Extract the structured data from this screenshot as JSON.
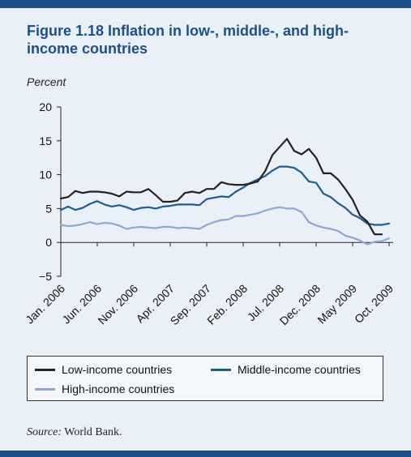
{
  "figure": {
    "title": "Figure 1.18  Inflation in low-, middle-, and high-income countries",
    "unit_label": "Percent",
    "source_prefix": "Source:",
    "source_text": "World Bank."
  },
  "colors": {
    "frame_bg": "#eaf0f7",
    "accent": "#1f4f8b",
    "title": "#1c4f8c"
  },
  "legend": [
    {
      "label": "Low-income countries",
      "color": "#222222"
    },
    {
      "label": "Middle-income countries",
      "color": "#1f5b94"
    },
    {
      "label": "High-income countries",
      "color": "#8ea6d4"
    }
  ],
  "chart_data": {
    "type": "line",
    "xlabel": "",
    "ylabel": "Percent",
    "ylim": [
      -5,
      20
    ],
    "yticks": [
      -5,
      0,
      5,
      10,
      15,
      20
    ],
    "x_tick_labels": [
      "Jan. 2006",
      "Jun. 2006",
      "Nov. 2006",
      "Apr. 2007",
      "Sep. 2007",
      "Feb. 2008",
      "Jul. 2008",
      "Dec. 2008",
      "May 2009",
      "Oct. 2009"
    ],
    "x_tick_month_index": [
      0,
      5,
      10,
      15,
      20,
      25,
      30,
      35,
      40,
      45
    ],
    "x_months": [
      "Jan. 2006",
      "Feb. 2006",
      "Mar. 2006",
      "Apr. 2006",
      "May 2006",
      "Jun. 2006",
      "Jul. 2006",
      "Aug. 2006",
      "Sep. 2006",
      "Oct. 2006",
      "Nov. 2006",
      "Dec. 2006",
      "Jan. 2007",
      "Feb. 2007",
      "Mar. 2007",
      "Apr. 2007",
      "May 2007",
      "Jun. 2007",
      "Jul. 2007",
      "Aug. 2007",
      "Sep. 2007",
      "Oct. 2007",
      "Nov. 2007",
      "Dec. 2007",
      "Jan. 2008",
      "Feb. 2008",
      "Mar. 2008",
      "Apr. 2008",
      "May 2008",
      "Jun. 2008",
      "Jul. 2008",
      "Aug. 2008",
      "Sep. 2008",
      "Oct. 2008",
      "Nov. 2008",
      "Dec. 2008",
      "Jan. 2009",
      "Feb. 2009",
      "Mar. 2009",
      "Apr. 2009",
      "May 2009",
      "Jun. 2009",
      "Jul. 2009",
      "Aug. 2009",
      "Sep. 2009",
      "Oct. 2009"
    ],
    "series": [
      {
        "name": "Low-income countries",
        "color": "#222222",
        "values": [
          6.5,
          6.7,
          7.6,
          7.3,
          7.5,
          7.5,
          7.4,
          7.2,
          6.8,
          7.5,
          7.4,
          7.4,
          7.9,
          7.0,
          6.0,
          6.0,
          6.2,
          7.3,
          7.5,
          7.3,
          7.9,
          7.9,
          8.9,
          8.6,
          8.5,
          8.5,
          8.7,
          9.0,
          10.5,
          12.9,
          14.1,
          15.3,
          13.5,
          13.0,
          13.8,
          12.5,
          10.2,
          10.2,
          9.3,
          7.9,
          6.3,
          4.0,
          3.1,
          1.2,
          1.2,
          null
        ]
      },
      {
        "name": "Middle-income countries",
        "color": "#1f5b94",
        "values": [
          4.8,
          5.3,
          4.8,
          5.1,
          5.7,
          6.1,
          5.6,
          5.3,
          5.5,
          5.2,
          4.8,
          5.1,
          5.2,
          5.0,
          5.3,
          5.4,
          5.6,
          5.6,
          5.6,
          5.5,
          6.4,
          6.6,
          6.8,
          6.7,
          7.5,
          8.1,
          8.8,
          9.3,
          9.8,
          10.6,
          11.2,
          11.2,
          11.0,
          10.3,
          9.0,
          8.8,
          7.2,
          6.7,
          5.8,
          5.1,
          4.1,
          3.6,
          2.8,
          2.6,
          2.6,
          2.8
        ]
      },
      {
        "name": "High-income countries",
        "color": "#8ea6d4",
        "values": [
          2.6,
          2.4,
          2.5,
          2.7,
          3.0,
          2.7,
          2.9,
          2.8,
          2.5,
          2.0,
          2.2,
          2.3,
          2.2,
          2.1,
          2.3,
          2.3,
          2.1,
          2.2,
          2.1,
          2.0,
          2.6,
          3.0,
          3.3,
          3.4,
          3.9,
          3.9,
          4.1,
          4.3,
          4.7,
          5.0,
          5.2,
          5.0,
          5.0,
          4.5,
          3.0,
          2.5,
          2.2,
          2.0,
          1.7,
          1.0,
          0.7,
          0.3,
          -0.3,
          0.1,
          0.2,
          0.6
        ]
      }
    ],
    "grid": false,
    "legend_position": "bottom"
  }
}
